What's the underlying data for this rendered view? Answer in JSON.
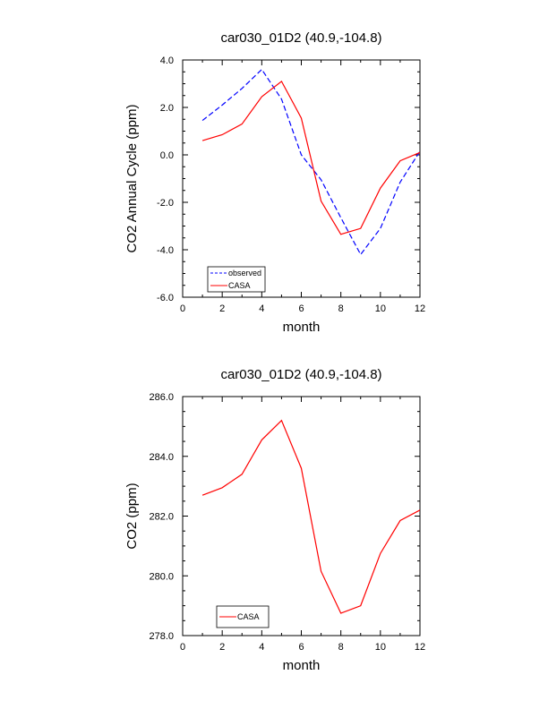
{
  "chart_data": [
    {
      "type": "line",
      "title": "car030_01D2 (40.9,-104.8)",
      "xlabel": "month",
      "ylabel": "CO2 Annual Cycle (ppm)",
      "xlim": [
        0,
        12
      ],
      "ylim": [
        -6.0,
        4.0
      ],
      "xticks": [
        0,
        2,
        4,
        6,
        8,
        10,
        12
      ],
      "xtick_labels": [
        "0",
        "2",
        "4",
        "6",
        "8",
        "10",
        "12"
      ],
      "yticks": [
        -6.0,
        -4.0,
        -2.0,
        0.0,
        2.0,
        4.0
      ],
      "ytick_labels": [
        "-6.0",
        "-4.0",
        "-2.0",
        "0.0",
        "2.0",
        "4.0"
      ],
      "grid": false,
      "legend_position": "bottom-left",
      "x": [
        1,
        2,
        3,
        4,
        5,
        6,
        7,
        8,
        9,
        10,
        11,
        12
      ],
      "series": [
        {
          "name": "observed",
          "color": "#0000ff",
          "dash": "dashed",
          "values": [
            1.45,
            2.1,
            2.8,
            3.6,
            2.35,
            0.0,
            -1.05,
            -2.65,
            -4.2,
            -3.1,
            -1.15,
            0.15
          ]
        },
        {
          "name": "CASA",
          "color": "#ff0000",
          "dash": "solid",
          "values": [
            0.6,
            0.85,
            1.3,
            2.45,
            3.1,
            1.55,
            -1.95,
            -3.35,
            -3.1,
            -1.4,
            -0.25,
            0.1
          ]
        }
      ]
    },
    {
      "type": "line",
      "title": "car030_01D2 (40.9,-104.8)",
      "xlabel": "month",
      "ylabel": "CO2 (ppm)",
      "xlim": [
        0,
        12
      ],
      "ylim": [
        278.0,
        286.0
      ],
      "xticks": [
        0,
        2,
        4,
        6,
        8,
        10,
        12
      ],
      "xtick_labels": [
        "0",
        "2",
        "4",
        "6",
        "8",
        "10",
        "12"
      ],
      "yticks": [
        278.0,
        280.0,
        282.0,
        284.0,
        286.0
      ],
      "ytick_labels": [
        "278.0",
        "280.0",
        "282.0",
        "284.0",
        "286.0"
      ],
      "grid": false,
      "legend_position": "bottom-left",
      "x": [
        1,
        2,
        3,
        4,
        5,
        6,
        7,
        8,
        9,
        10,
        11,
        12
      ],
      "series": [
        {
          "name": "CASA",
          "color": "#ff0000",
          "dash": "solid",
          "values": [
            282.7,
            282.95,
            283.4,
            284.55,
            285.2,
            283.6,
            280.15,
            278.75,
            279.0,
            280.75,
            281.85,
            282.2
          ]
        }
      ]
    }
  ]
}
